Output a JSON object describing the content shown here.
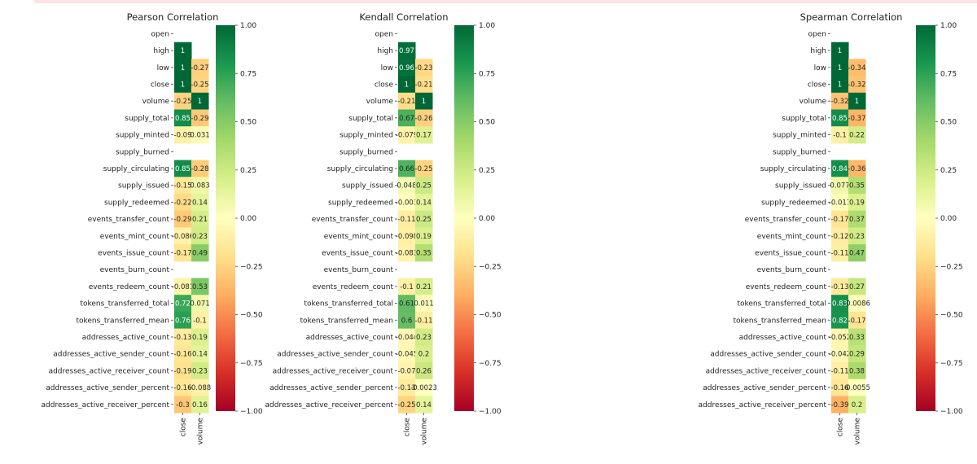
{
  "chart_data": [
    {
      "type": "heatmap",
      "title": "Pearson Correlation",
      "rows": [
        "open",
        "high",
        "low",
        "close",
        "volume",
        "supply_total",
        "supply_minted",
        "supply_burned",
        "supply_circulating",
        "supply_issued",
        "supply_redeemed",
        "events_transfer_count",
        "events_mint_count",
        "events_issue_count",
        "events_burn_count",
        "events_redeem_count",
        "tokens_transferred_total",
        "tokens_transferred_mean",
        "addresses_active_count",
        "addresses_active_sender_count",
        "addresses_active_receiver_count",
        "addresses_active_sender_percent",
        "addresses_active_receiver_percent"
      ],
      "columns": [
        "close",
        "volume"
      ],
      "values": [
        [
          null,
          null
        ],
        [
          1,
          null
        ],
        [
          1,
          -0.27
        ],
        [
          1,
          -0.25
        ],
        [
          -0.25,
          1
        ],
        [
          0.85,
          -0.29
        ],
        [
          -0.09,
          0.031
        ],
        [
          null,
          null
        ],
        [
          0.85,
          -0.28
        ],
        [
          -0.15,
          0.083
        ],
        [
          -0.22,
          0.14
        ],
        [
          -0.29,
          0.21
        ],
        [
          -0.086,
          0.23
        ],
        [
          -0.17,
          0.49
        ],
        [
          null,
          null
        ],
        [
          -0.081,
          0.53
        ],
        [
          0.72,
          0.071
        ],
        [
          0.76,
          -0.1
        ],
        [
          -0.13,
          0.19
        ],
        [
          -0.16,
          0.14
        ],
        [
          -0.19,
          0.23
        ],
        [
          -0.16,
          -0.088
        ],
        [
          -0.3,
          0.16
        ]
      ],
      "labels": [
        [
          "",
          ""
        ],
        [
          "1",
          ""
        ],
        [
          "1",
          "-0.27"
        ],
        [
          "1",
          "-0.25"
        ],
        [
          "-0.25",
          "1"
        ],
        [
          "0.85",
          "-0.29"
        ],
        [
          "-0.09",
          "0.031"
        ],
        [
          "",
          ""
        ],
        [
          "0.85",
          "-0.28"
        ],
        [
          "-0.15",
          "0.083"
        ],
        [
          "-0.22",
          "0.14"
        ],
        [
          "-0.29",
          "0.21"
        ],
        [
          "-0.086",
          "0.23"
        ],
        [
          "-0.17",
          "0.49"
        ],
        [
          "",
          ""
        ],
        [
          "-0.081",
          "0.53"
        ],
        [
          "0.72",
          "0.071"
        ],
        [
          "0.76",
          "-0.1"
        ],
        [
          "-0.13",
          "0.19"
        ],
        [
          "-0.16",
          "0.14"
        ],
        [
          "-0.19",
          "0.23"
        ],
        [
          "-0.16",
          "-0.088"
        ],
        [
          "-0.3",
          "0.16"
        ]
      ],
      "colorbar": {
        "range": [
          -1,
          1
        ],
        "ticks": [
          "1.00",
          "0.75",
          "0.50",
          "0.25",
          "0.00",
          "−0.25",
          "−0.50",
          "−0.75",
          "−1.00"
        ]
      },
      "colormap": "RdYlGn"
    },
    {
      "type": "heatmap",
      "title": "Kendall Correlation",
      "rows": [
        "open",
        "high",
        "low",
        "close",
        "volume",
        "supply_total",
        "supply_minted",
        "supply_burned",
        "supply_circulating",
        "supply_issued",
        "supply_redeemed",
        "events_transfer_count",
        "events_mint_count",
        "events_issue_count",
        "events_burn_count",
        "events_redeem_count",
        "tokens_transferred_total",
        "tokens_transferred_mean",
        "addresses_active_count",
        "addresses_active_sender_count",
        "addresses_active_receiver_count",
        "addresses_active_sender_percent",
        "addresses_active_receiver_percent"
      ],
      "columns": [
        "close",
        "volume"
      ],
      "values": [
        [
          null,
          null
        ],
        [
          0.97,
          null
        ],
        [
          0.96,
          -0.23
        ],
        [
          1,
          -0.21
        ],
        [
          -0.21,
          1
        ],
        [
          0.67,
          -0.26
        ],
        [
          -0.079,
          0.17
        ],
        [
          null,
          null
        ],
        [
          0.66,
          -0.25
        ],
        [
          0.048,
          0.25
        ],
        [
          -0.003,
          0.14
        ],
        [
          -0.11,
          0.25
        ],
        [
          -0.098,
          0.19
        ],
        [
          -0.083,
          0.35
        ],
        [
          null,
          null
        ],
        [
          -0.1,
          0.21
        ],
        [
          0.61,
          0.011
        ],
        [
          0.6,
          -0.11
        ],
        [
          -0.044,
          0.23
        ],
        [
          -0.045,
          0.2
        ],
        [
          -0.07,
          0.26
        ],
        [
          -0.13,
          -0.0023
        ],
        [
          -0.25,
          0.14
        ]
      ],
      "labels": [
        [
          "",
          ""
        ],
        [
          "0.97",
          ""
        ],
        [
          "0.96",
          "-0.23"
        ],
        [
          "1",
          "-0.21"
        ],
        [
          "-0.21",
          "1"
        ],
        [
          "0.67",
          "-0.26"
        ],
        [
          "-0.079",
          "0.17"
        ],
        [
          "",
          ""
        ],
        [
          "0.66",
          "-0.25"
        ],
        [
          "0.048",
          "0.25"
        ],
        [
          "-0.003",
          "0.14"
        ],
        [
          "-0.11",
          "0.25"
        ],
        [
          "-0.098",
          "0.19"
        ],
        [
          "-0.083",
          "0.35"
        ],
        [
          "",
          ""
        ],
        [
          "-0.1",
          "0.21"
        ],
        [
          "0.61",
          "0.011"
        ],
        [
          "0.6",
          "-0.11"
        ],
        [
          "-0.044",
          "0.23"
        ],
        [
          "-0.045",
          "0.2"
        ],
        [
          "-0.07",
          "0.26"
        ],
        [
          "-0.13",
          "-0.0023"
        ],
        [
          "-0.25",
          "0.14"
        ]
      ],
      "colorbar": {
        "range": [
          -1,
          1
        ],
        "ticks": [
          "1.00",
          "0.75",
          "0.50",
          "0.25",
          "0.00",
          "−0.25",
          "−0.50",
          "−0.75",
          "−1.00"
        ]
      },
      "colormap": "RdYlGn"
    },
    {
      "type": "heatmap",
      "title": "Spearman Correlation",
      "rows": [
        "open",
        "high",
        "low",
        "close",
        "volume",
        "supply_total",
        "supply_minted",
        "supply_burned",
        "supply_circulating",
        "supply_issued",
        "supply_redeemed",
        "events_transfer_count",
        "events_mint_count",
        "events_issue_count",
        "events_burn_count",
        "events_redeem_count",
        "tokens_transferred_total",
        "tokens_transferred_mean",
        "addresses_active_count",
        "addresses_active_sender_count",
        "addresses_active_receiver_count",
        "addresses_active_sender_percent",
        "addresses_active_receiver_percent"
      ],
      "columns": [
        "close",
        "volume"
      ],
      "values": [
        [
          null,
          null
        ],
        [
          1,
          null
        ],
        [
          1,
          -0.34
        ],
        [
          1,
          -0.32
        ],
        [
          -0.32,
          1
        ],
        [
          0.85,
          -0.37
        ],
        [
          -0.1,
          0.22
        ],
        [
          null,
          null
        ],
        [
          0.84,
          -0.36
        ],
        [
          0.077,
          0.35
        ],
        [
          -0.011,
          0.19
        ],
        [
          -0.17,
          0.37
        ],
        [
          -0.12,
          0.23
        ],
        [
          -0.11,
          0.47
        ],
        [
          null,
          null
        ],
        [
          -0.13,
          0.27
        ],
        [
          0.83,
          -0.0086
        ],
        [
          0.82,
          -0.17
        ],
        [
          -0.052,
          0.33
        ],
        [
          -0.042,
          0.29
        ],
        [
          -0.11,
          0.38
        ],
        [
          -0.16,
          -0.0055
        ],
        [
          -0.39,
          0.2
        ]
      ],
      "labels": [
        [
          "",
          ""
        ],
        [
          "1",
          ""
        ],
        [
          "1",
          "-0.34"
        ],
        [
          "1",
          "-0.32"
        ],
        [
          "-0.32",
          "1"
        ],
        [
          "0.85",
          "-0.37"
        ],
        [
          "-0.1",
          "0.22"
        ],
        [
          "",
          ""
        ],
        [
          "0.84",
          "-0.36"
        ],
        [
          "0.077",
          "0.35"
        ],
        [
          "-0.011",
          "0.19"
        ],
        [
          "-0.17",
          "0.37"
        ],
        [
          "-0.12",
          "0.23"
        ],
        [
          "-0.11",
          "0.47"
        ],
        [
          "",
          ""
        ],
        [
          "-0.13",
          "0.27"
        ],
        [
          "0.83",
          "-0.0086"
        ],
        [
          "0.82",
          "-0.17"
        ],
        [
          "-0.052",
          "0.33"
        ],
        [
          "-0.042",
          "0.29"
        ],
        [
          "-0.11",
          "0.38"
        ],
        [
          "-0.16",
          "-0.0055"
        ],
        [
          "-0.39",
          "0.2"
        ]
      ],
      "colorbar": {
        "range": [
          -1,
          1
        ],
        "ticks": [
          "1.00",
          "0.75",
          "0.50",
          "0.25",
          "0.00",
          "−0.25",
          "−0.50",
          "−0.75",
          "−1.00"
        ]
      },
      "colormap": "RdYlGn"
    }
  ]
}
